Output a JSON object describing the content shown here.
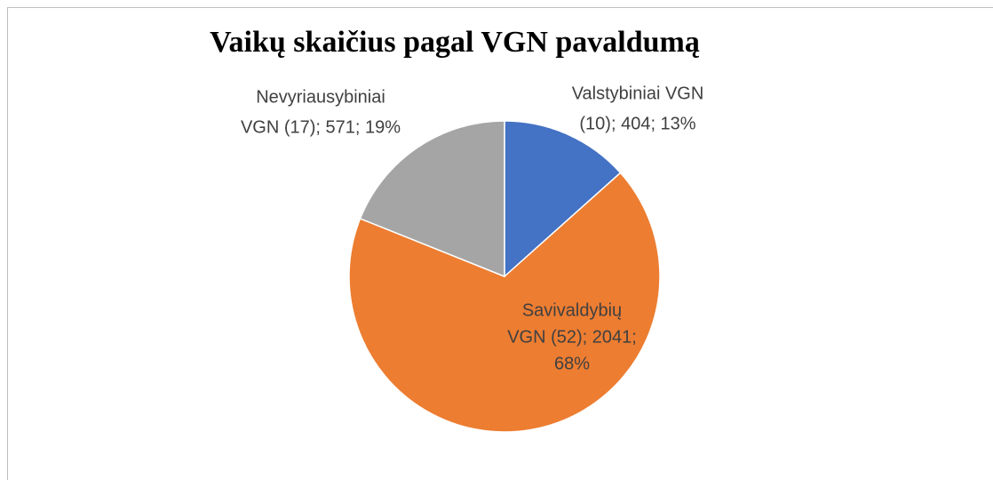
{
  "chart_data": {
    "type": "pie",
    "title": "Vaikų skaičius pagal VGN pavaldumą",
    "values": [
      404,
      2041,
      571
    ],
    "colors": [
      "#4472c4",
      "#ed7d31",
      "#a5a5a5"
    ],
    "value_labels": [
      [
        "Valstybiniai VGN",
        "(10); 404; 13%"
      ],
      [
        "Savivaldybių",
        "VGN (52); 2041;",
        "68%"
      ],
      [
        "Nevyriausybiniai",
        "VGN (17); 571; 19%"
      ]
    ]
  }
}
